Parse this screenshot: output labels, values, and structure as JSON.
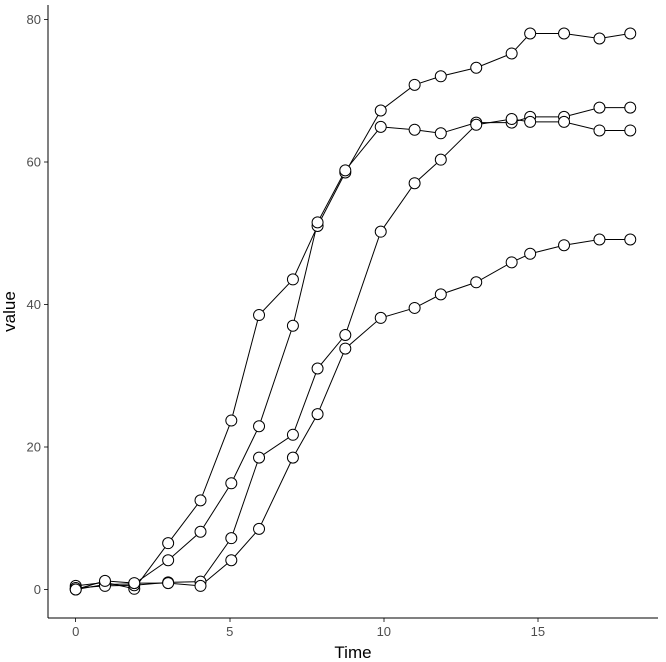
{
  "chart_data": {
    "type": "line",
    "xlabel": "Time",
    "ylabel": "value",
    "xlim": [
      -0.9,
      18.9
    ],
    "ylim": [
      -4,
      82
    ],
    "x_ticks": [
      0,
      5,
      10,
      15
    ],
    "y_ticks": [
      0,
      20,
      40,
      60,
      80
    ],
    "grid": false,
    "legend": "none",
    "marker": "open-circle",
    "line_color": "#000000",
    "marker_fill": "#ffffff",
    "x": [
      0,
      0.95,
      1.9,
      3.0,
      4.05,
      5.05,
      5.95,
      7.05,
      7.85,
      8.75,
      9.9,
      11.0,
      11.85,
      13.0,
      14.15,
      14.75,
      15.85,
      17.0,
      18.0
    ],
    "series": [
      {
        "values": [
          0.5,
          1.0,
          0.1,
          6.5,
          12.5,
          23.7,
          38.5,
          43.5,
          51.0,
          58.5,
          67.2,
          70.8,
          72.0,
          73.2,
          75.2,
          78.0,
          78.0,
          77.3,
          78.0
        ]
      },
      {
        "values": [
          0.0,
          0.7,
          0.8,
          4.1,
          8.1,
          14.9,
          22.9,
          37.0,
          51.5,
          58.8,
          64.9,
          64.5,
          64.0,
          65.5,
          65.5,
          66.3,
          66.3,
          67.6,
          67.6
        ]
      },
      {
        "values": [
          0.2,
          0.5,
          0.6,
          1.0,
          1.1,
          7.2,
          18.5,
          21.7,
          31.0,
          35.7,
          50.2,
          57.0,
          60.3,
          65.2,
          66.0,
          65.6,
          65.6,
          64.4,
          64.4
        ]
      },
      {
        "values": [
          0.0,
          1.2,
          0.9,
          0.9,
          0.5,
          4.1,
          8.5,
          18.5,
          24.6,
          33.8,
          38.1,
          39.5,
          41.4,
          43.1,
          45.9,
          47.1,
          48.3,
          49.1,
          49.1
        ]
      }
    ]
  }
}
